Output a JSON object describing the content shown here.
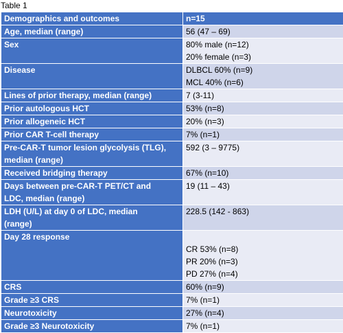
{
  "caption": "Table 1",
  "header": {
    "col1": "Demographics and outcomes",
    "col2": "n=15"
  },
  "rows": [
    {
      "label": [
        "Age, median (range)"
      ],
      "value": [
        "56 (47 – 69)"
      ]
    },
    {
      "label": [
        "Sex"
      ],
      "value": [
        "80% male (n=12)",
        "20% female (n=3)"
      ]
    },
    {
      "label": [
        "Disease"
      ],
      "value": [
        "DLBCL 60% (n=9)",
        "MCL 40% (n=6)"
      ]
    },
    {
      "label": [
        "Lines of prior therapy, median (range)"
      ],
      "value": [
        "7 (3-11)"
      ]
    },
    {
      "label": [
        "Prior autologous HCT"
      ],
      "value": [
        "53% (n=8)"
      ]
    },
    {
      "label": [
        "Prior allogeneic HCT"
      ],
      "value": [
        "20% (n=3)"
      ]
    },
    {
      "label": [
        "Prior CAR T-cell therapy"
      ],
      "value": [
        "7% (n=1)"
      ]
    },
    {
      "label": [
        "Pre-CAR-T tumor lesion glycolysis (TLG),",
        "median (range)"
      ],
      "value": [
        "592 (3 – 9775)"
      ]
    },
    {
      "label": [
        "Received bridging therapy"
      ],
      "value": [
        "67% (n=10)"
      ]
    },
    {
      "label": [
        "Days between pre-CAR-T PET/CT and",
        "LDC, median (range)"
      ],
      "value": [
        "19 (11 – 43)"
      ]
    },
    {
      "label": [
        "LDH (U/L) at day 0 of LDC, median",
        "(range)"
      ],
      "value": [
        "228.5 (142 - 863)"
      ]
    },
    {
      "label": [
        "Day 28 response"
      ],
      "value": [
        "",
        "CR  53% (n=8)",
        "PR 20% (n=3)",
        "PD 27% (n=4)"
      ]
    },
    {
      "label": [
        "CRS"
      ],
      "value": [
        "60% (n=9)"
      ]
    },
    {
      "label": [
        "Grade ≥3 CRS"
      ],
      "value": [
        "7% (n=1)"
      ]
    },
    {
      "label": [
        "Neurotoxicity"
      ],
      "value": [
        "27% (n=4)"
      ]
    },
    {
      "label": [
        "Grade ≥3 Neurotoxicity"
      ],
      "value": [
        "7% (n=1)"
      ]
    }
  ]
}
